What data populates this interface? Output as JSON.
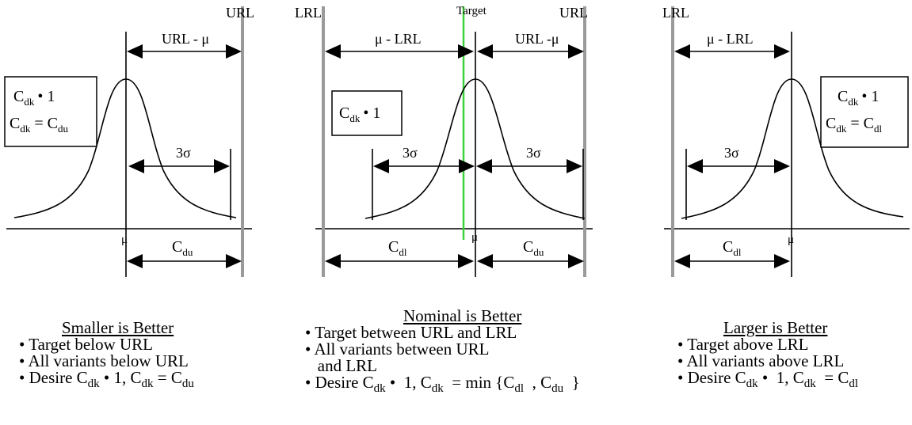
{
  "labels": {
    "url": "URL",
    "lrl": "LRL",
    "target": "Target",
    "url_minus_mu": "URL - μ",
    "url_minus_mu_mid": "URL -μ",
    "mu_minus_lrl": "μ - LRL",
    "three_sigma": "3σ",
    "mu": "μ",
    "c": "C",
    "dk": "dk",
    "du": "du",
    "dl": "dl",
    "ge_one": "• 1",
    "equals": "="
  },
  "panels": {
    "smaller": {
      "title": "Smaller is Better",
      "bullets": [
        "• Target below URL",
        "• All variants below URL"
      ],
      "desire": {
        "prefix": "• Desire C",
        "dk1": "dk",
        "mid": " •  1, C",
        "dk2": "dk",
        "eq": "  = C",
        "sub": "du"
      }
    },
    "nominal": {
      "title": "Nominal is Better",
      "bullets": [
        "• Target between URL and LRL",
        "• All variants between URL",
        "   and LRL"
      ],
      "desire": {
        "prefix": "• Desire C",
        "dk1": "dk",
        "mid": " •  1, C",
        "dk2": "dk",
        "eq": "  = min {C",
        "sub1": "dl",
        "sep": "  , C",
        "sub2": "du",
        "close": "  }"
      }
    },
    "larger": {
      "title": "Larger is Better",
      "bullets": [
        "• Target above LRL",
        "• All variants above LRL"
      ],
      "desire": {
        "prefix": "• Desire C",
        "dk1": "dk",
        "mid": " •  1, C",
        "dk2": "dk",
        "eq": "  = C",
        "sub": "dl"
      }
    }
  }
}
